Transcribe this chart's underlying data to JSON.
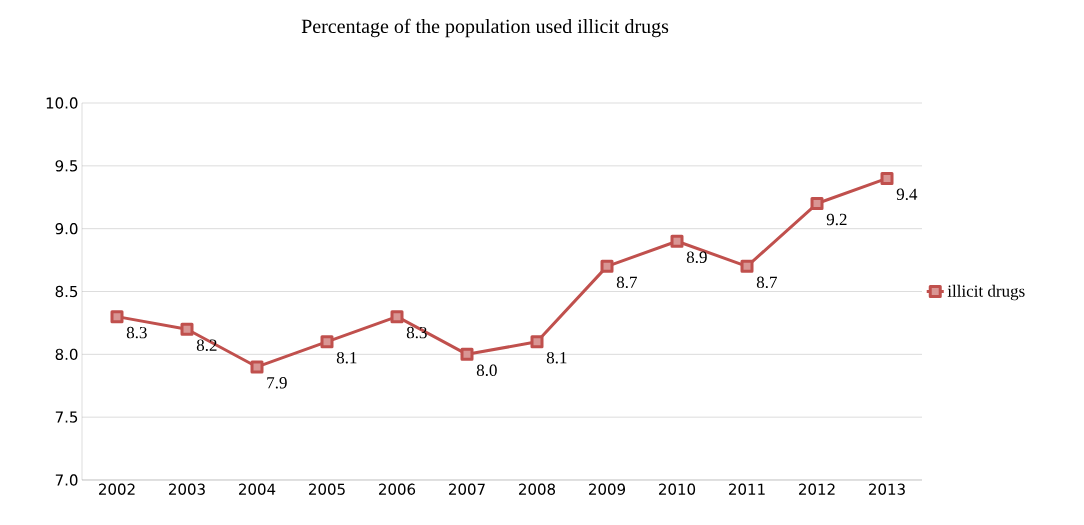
{
  "chart_data": {
    "type": "line",
    "title": "Percentage of the population used illicit drugs",
    "categories": [
      "2002",
      "2003",
      "2004",
      "2005",
      "2006",
      "2007",
      "2008",
      "2009",
      "2010",
      "2011",
      "2012",
      "2013"
    ],
    "series": [
      {
        "name": "illicit drugs",
        "color": "#c0504d",
        "values": [
          8.3,
          8.2,
          7.9,
          8.1,
          8.3,
          8.0,
          8.1,
          8.7,
          8.9,
          8.7,
          9.2,
          9.4
        ],
        "value_labels": [
          "8.3",
          "8.2",
          "7.9",
          "8.1",
          "8.3",
          "8.0",
          "8.1",
          "8.7",
          "8.9",
          "8.7",
          "9.2",
          "9.4"
        ]
      }
    ],
    "ylim": [
      7.0,
      10.0
    ],
    "yticks": [
      {
        "value": 7.0,
        "label": "7.0"
      },
      {
        "value": 7.5,
        "label": "7.5"
      },
      {
        "value": 8.0,
        "label": "8.0"
      },
      {
        "value": 8.5,
        "label": "8.5"
      },
      {
        "value": 9.0,
        "label": "9.0"
      },
      {
        "value": 9.5,
        "label": "9.5"
      },
      {
        "value": 10.0,
        "label": "10.0"
      }
    ],
    "grid": "y",
    "legend": "right",
    "marker": "square",
    "line_style": "solid"
  }
}
